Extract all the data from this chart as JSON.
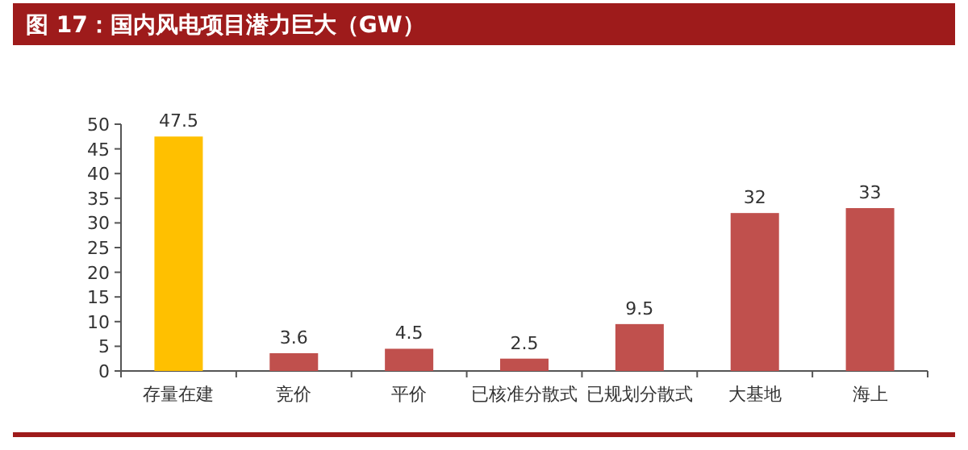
{
  "chart_data": {
    "type": "bar",
    "title": "图 17：国内风电项目潜力巨大（GW）",
    "categories": [
      "存量在建",
      "竞价",
      "平价",
      "已核准分散式",
      "已规划分散式",
      "大基地",
      "海上"
    ],
    "values": [
      47.5,
      3.6,
      4.5,
      2.5,
      9.5,
      32,
      33
    ],
    "colors": [
      "#ffc000",
      "#c0504d",
      "#c0504d",
      "#c0504d",
      "#c0504d",
      "#c0504d",
      "#c0504d"
    ],
    "ylim": [
      0,
      50
    ],
    "yticks": [
      0,
      5,
      10,
      15,
      20,
      25,
      30,
      35,
      40,
      45,
      50
    ],
    "data_labels": true,
    "grid": false
  }
}
